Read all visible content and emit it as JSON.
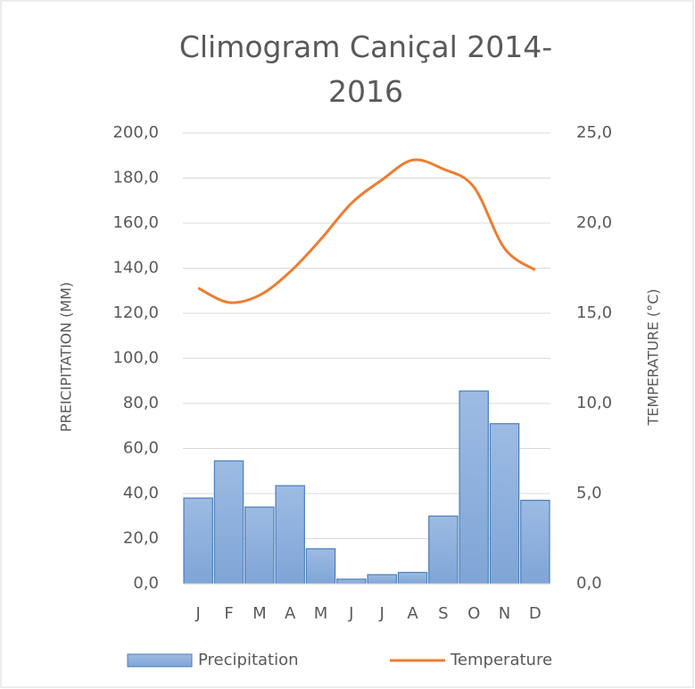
{
  "chart_data": {
    "type": "bar-line",
    "title": "Climogram Caniçal 2014-2016",
    "categories": [
      "J",
      "F",
      "M",
      "A",
      "M",
      "J",
      "J",
      "A",
      "S",
      "O",
      "N",
      "D"
    ],
    "series": [
      {
        "name": "Precipitation",
        "type": "bar",
        "color": "#8eb0dd",
        "values": [
          38,
          54.5,
          34,
          43.5,
          15.5,
          2,
          4,
          5,
          30,
          85.5,
          71,
          37
        ]
      },
      {
        "name": "Temperature",
        "type": "line",
        "axis": "y2",
        "color": "#ed7d31",
        "values": [
          16.4,
          15.6,
          16.0,
          17.3,
          19.1,
          21.1,
          22.4,
          23.5,
          23.0,
          22.0,
          18.6,
          17.4
        ]
      }
    ],
    "ylabel": "PREICIPITATION (MM)",
    "y2label": "TEMPERATURE (°C)",
    "ylim": [
      0,
      200
    ],
    "yticks": [
      {
        "value": 0,
        "label": "0,0"
      },
      {
        "value": 20,
        "label": "20,0"
      },
      {
        "value": 40,
        "label": "40,0"
      },
      {
        "value": 60,
        "label": "60,0"
      },
      {
        "value": 80,
        "label": "80,0"
      },
      {
        "value": 100,
        "label": "100,0"
      },
      {
        "value": 120,
        "label": "120,0"
      },
      {
        "value": 140,
        "label": "140,0"
      },
      {
        "value": 160,
        "label": "160,0"
      },
      {
        "value": 180,
        "label": "180,0"
      },
      {
        "value": 200,
        "label": "200,0"
      }
    ],
    "y2lim": [
      0,
      25
    ],
    "y2ticks": [
      {
        "value": 0,
        "label": "0,0"
      },
      {
        "value": 5,
        "label": "5,0"
      },
      {
        "value": 10,
        "label": "10,0"
      },
      {
        "value": 15,
        "label": "15,0"
      },
      {
        "value": 20,
        "label": "20,0"
      },
      {
        "value": 25,
        "label": "25,0"
      }
    ],
    "grid": true,
    "legend": "bottom"
  }
}
